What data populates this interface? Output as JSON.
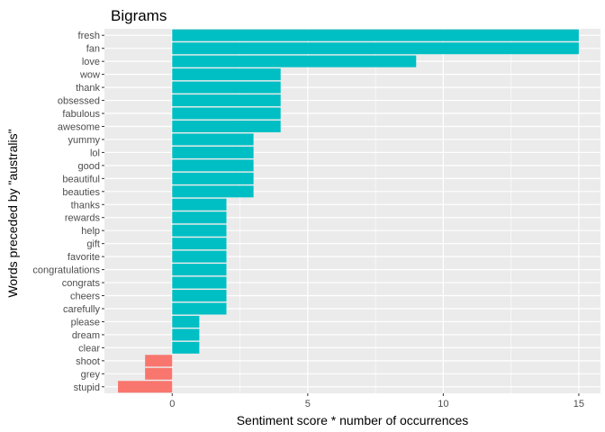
{
  "chart_data": {
    "type": "bar",
    "orientation": "horizontal",
    "title": "Bigrams",
    "xlabel": "Sentiment score * number of occurrences",
    "ylabel": "Words preceded by \"australis\"",
    "xlim": [
      -2.5,
      15.8
    ],
    "xticks": [
      0,
      5,
      10,
      15
    ],
    "grid": true,
    "legend": "none",
    "categories": [
      "fresh",
      "fan",
      "love",
      "wow",
      "thank",
      "obsessed",
      "fabulous",
      "awesome",
      "yummy",
      "lol",
      "good",
      "beautiful",
      "beauties",
      "thanks",
      "rewards",
      "help",
      "gift",
      "favorite",
      "congratulations",
      "congrats",
      "cheers",
      "carefully",
      "please",
      "dream",
      "clear",
      "shoot",
      "grey",
      "stupid"
    ],
    "values": [
      15,
      15,
      9,
      4,
      4,
      4,
      4,
      4,
      3,
      3,
      3,
      3,
      3,
      2,
      2,
      2,
      2,
      2,
      2,
      2,
      2,
      2,
      1,
      1,
      1,
      -1,
      -1,
      -2
    ],
    "colors": {
      "positive": "#00bfc4",
      "negative": "#f8766d",
      "panel": "#ebebeb",
      "grid": "#ffffff"
    }
  }
}
